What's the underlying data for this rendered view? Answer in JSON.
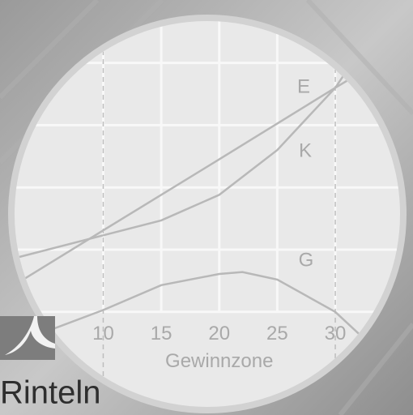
{
  "chart_data": {
    "type": "line",
    "xlabel": "Gewinnzone",
    "xlim": [
      2.5,
      36
    ],
    "ylim": [
      -1.5,
      4.75
    ],
    "xticks": [
      10,
      15,
      20,
      25,
      30
    ],
    "yticks": [
      0,
      1,
      2,
      3,
      4
    ],
    "grid": true,
    "series": [
      {
        "name": "E",
        "color": "#b8b8b8",
        "x": [
          2.5,
          10,
          20,
          30,
          31.6
        ],
        "values": [
          0.45,
          1.31,
          2.45,
          3.6,
          3.78
        ]
      },
      {
        "name": "K",
        "color": "#b8b8b8",
        "x": [
          2.5,
          10,
          15,
          20,
          25,
          30,
          31.3
        ],
        "values": [
          0.87,
          1.23,
          1.47,
          1.88,
          2.6,
          3.6,
          3.96
        ]
      },
      {
        "name": "G",
        "color": "#b8b8b8",
        "x": [
          5.3,
          10,
          15,
          20,
          22,
          25,
          30,
          33
        ],
        "values": [
          -0.3,
          0.03,
          0.43,
          0.61,
          0.64,
          0.52,
          0,
          -0.52
        ]
      }
    ]
  },
  "brand": "Rinteln"
}
